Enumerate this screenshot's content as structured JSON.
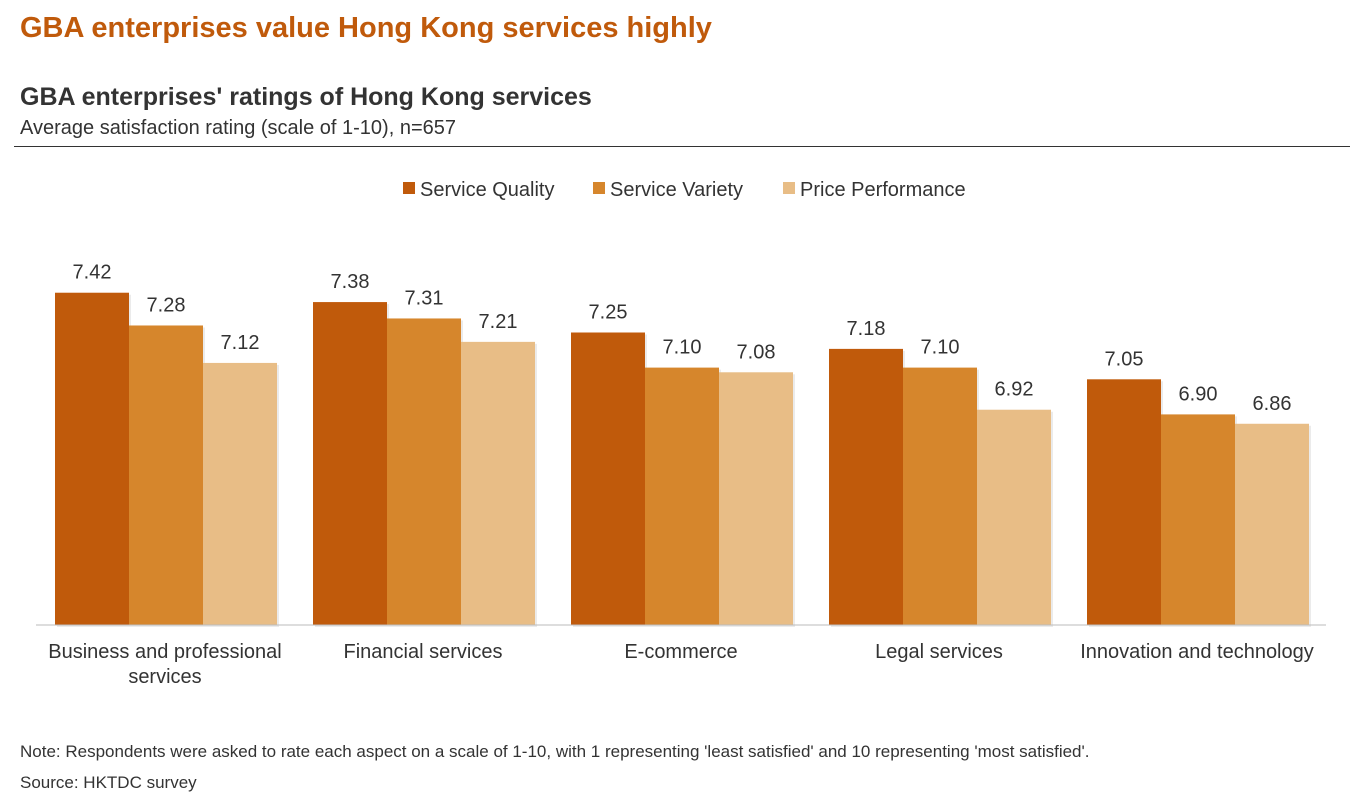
{
  "headline": "GBA enterprises value Hong Kong services highly",
  "note": "Note: Respondents were asked to rate each aspect on a scale of 1-10, with 1 representing 'least satisfied' and 10 representing 'most satisfied'.",
  "source": "Source: HKTDC survey",
  "chart_data": {
    "type": "bar",
    "title": "GBA enterprises' ratings of Hong Kong services",
    "subtitle": "Average satisfaction rating (scale of 1-10), n=657",
    "categories": [
      [
        "Business and professional",
        "services"
      ],
      [
        "Financial services"
      ],
      [
        "E-commerce"
      ],
      [
        "Legal services"
      ],
      [
        "Innovation and technology"
      ]
    ],
    "series": [
      {
        "name": "Service Quality",
        "color": "#C05A0B",
        "values": [
          7.42,
          7.38,
          7.25,
          7.18,
          7.05
        ]
      },
      {
        "name": "Service Variety",
        "color": "#D6862C",
        "values": [
          7.28,
          7.31,
          7.1,
          7.1,
          6.9
        ]
      },
      {
        "name": "Price Performance",
        "color": "#E8BD86",
        "values": [
          7.12,
          7.21,
          7.08,
          6.92,
          6.86
        ]
      }
    ],
    "ylim": [
      6,
      8
    ],
    "legend": "top-center",
    "grid": false,
    "data_labels": true
  }
}
